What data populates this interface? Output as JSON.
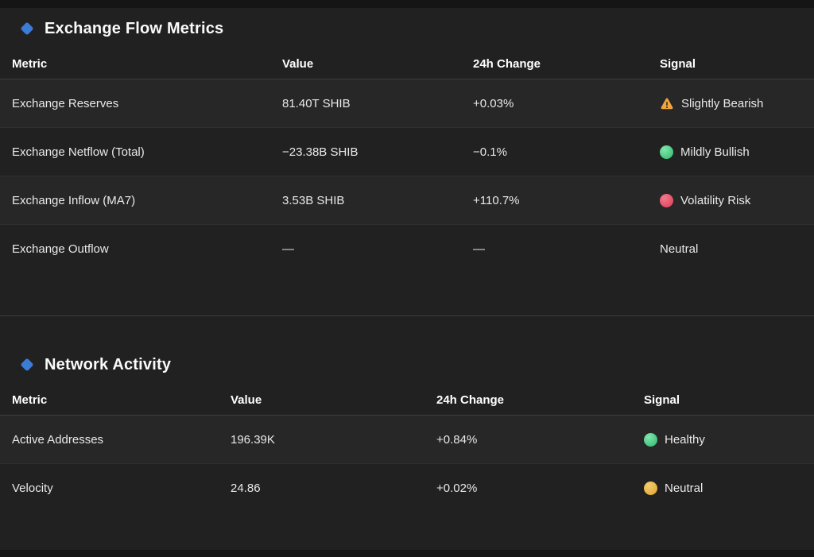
{
  "page": {
    "bg": "#212121",
    "edge_strip_color": "#151515",
    "accent_diamond_color": "#3b7cd6"
  },
  "sections": [
    {
      "title": "Exchange Flow Metrics",
      "icon": "blue-diamond-icon",
      "columns": [
        "Metric",
        "Value",
        "24h Change",
        "Signal"
      ],
      "rows": [
        {
          "metric": "Exchange Reserves",
          "value": "81.40T SHIB",
          "change": "+0.03%",
          "signal": "Slightly Bearish",
          "signal_icon": "warning-triangle",
          "signal_color": "#f2a43d",
          "signal_color_light": "#f7c46e"
        },
        {
          "metric": "Exchange Netflow (Total)",
          "value": "−23.38B SHIB",
          "change": "−0.1%",
          "signal": "Mildly Bullish",
          "signal_icon": "circle",
          "signal_color": "#31b46c",
          "signal_color_light": "#7fe8ad"
        },
        {
          "metric": "Exchange Inflow (MA7)",
          "value": "3.53B SHIB",
          "change": "+110.7%",
          "signal": "Volatility Risk",
          "signal_icon": "circle",
          "signal_color": "#dc3a55",
          "signal_color_light": "#f3798c"
        },
        {
          "metric": "Exchange Outflow",
          "value": "—",
          "change": "—",
          "signal": "Neutral",
          "signal_icon": "none",
          "signal_color": "",
          "signal_color_light": ""
        }
      ]
    },
    {
      "title": "Network Activity",
      "icon": "blue-diamond-icon",
      "columns": [
        "Metric",
        "Value",
        "24h Change",
        "Signal"
      ],
      "rows": [
        {
          "metric": "Active Addresses",
          "value": "196.39K",
          "change": "+0.84%",
          "signal": "Healthy",
          "signal_icon": "circle",
          "signal_color": "#31b46c",
          "signal_color_light": "#7fe8ad"
        },
        {
          "metric": "Velocity",
          "value": "24.86",
          "change": "+0.02%",
          "signal": "Neutral",
          "signal_icon": "circle",
          "signal_color": "#dfa22f",
          "signal_color_light": "#f2cf6e"
        }
      ]
    }
  ]
}
